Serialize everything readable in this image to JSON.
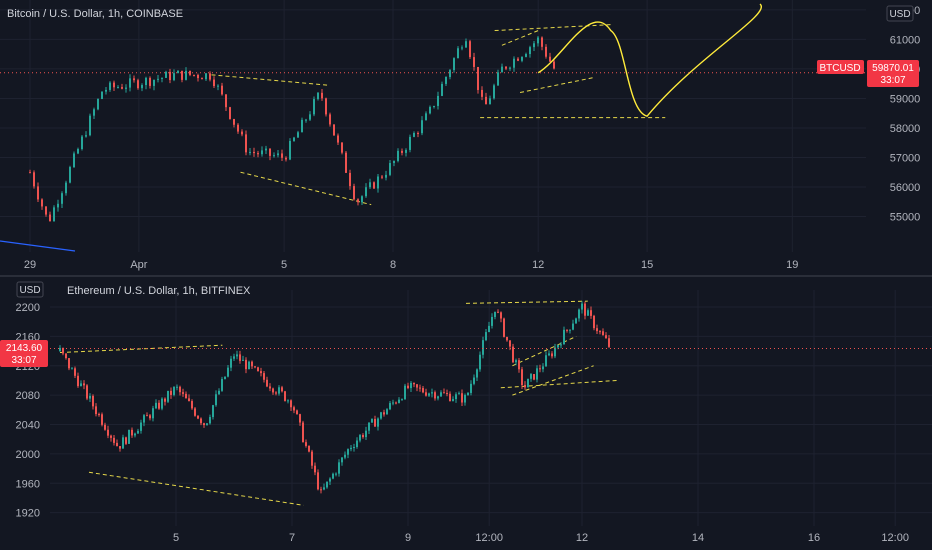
{
  "colors": {
    "background": "#131722",
    "grid": "#1e2230",
    "up": "#26a69a",
    "down": "#ef5350",
    "text": "#d1d4dc",
    "axis_text": "#b2b5be",
    "pattern_lines": "#e6d84a",
    "projection": "#ffeb3b",
    "price_label_bg": "#f23645"
  },
  "chart_data": [
    {
      "type": "candlestick",
      "title": "Bitcoin / U.S. Dollar, 1h, COINBASE",
      "currency_label": "USD",
      "symbol_tag": "BTCUSD",
      "last_price": "59870.01",
      "countdown": "33:07",
      "x_tick_labels": [
        "29",
        "Apr",
        "5",
        "8",
        "12",
        "15",
        "19"
      ],
      "y_ticks": [
        55000,
        56000,
        57000,
        58000,
        59000,
        60000,
        61000,
        62000
      ],
      "y_tick_labels": [
        "55000",
        "56000",
        "57000",
        "58000",
        "59000",
        "60000",
        "61000",
        "62000"
      ],
      "ylim": [
        54000,
        62200
      ],
      "grid": true,
      "key_points": [
        {
          "x": "Mar 29",
          "y": 56500
        },
        {
          "x": "Mar 29",
          "y": 54800
        },
        {
          "x": "Mar 31",
          "y": 59300
        },
        {
          "x": "Apr 2",
          "y": 59800
        },
        {
          "x": "Apr 3",
          "y": 59800
        },
        {
          "x": "Apr 4",
          "y": 57200
        },
        {
          "x": "Apr 5",
          "y": 57000
        },
        {
          "x": "Apr 6",
          "y": 59200
        },
        {
          "x": "Apr 7",
          "y": 55500
        },
        {
          "x": "Apr 8",
          "y": 56800
        },
        {
          "x": "Apr 9",
          "y": 58500
        },
        {
          "x": "Apr 10",
          "y": 61200
        },
        {
          "x": "Apr 10",
          "y": 58600
        },
        {
          "x": "Apr 11",
          "y": 60000
        },
        {
          "x": "Apr 12",
          "y": 61000
        },
        {
          "x": "Apr 12",
          "y": 59870
        }
      ],
      "projection_path": [
        {
          "x": "Apr 12",
          "y": 59870
        },
        {
          "x": "Apr 14",
          "y": 61300
        },
        {
          "x": "Apr 15",
          "y": 58400
        },
        {
          "x": "Apr 19",
          "y": 62200
        }
      ]
    },
    {
      "type": "candlestick",
      "title": "Ethereum / U.S. Dollar, 1h, BITFINEX",
      "currency_label": "USD",
      "last_price": "2143.60",
      "countdown": "33:07",
      "x_tick_labels": [
        "5",
        "7",
        "9",
        "12:00",
        "12",
        "14",
        "16",
        "12:00"
      ],
      "y_ticks": [
        1920,
        1960,
        2000,
        2040,
        2080,
        2120,
        2160,
        2200
      ],
      "y_tick_labels": [
        "1920",
        "1960",
        "2000",
        "2040",
        "2080",
        "2120",
        "2160",
        "2200"
      ],
      "ylim": [
        1910,
        2215
      ],
      "grid": true,
      "key_points": [
        {
          "x": "Apr 3",
          "y": 2140
        },
        {
          "x": "Apr 4",
          "y": 2010
        },
        {
          "x": "Apr 5",
          "y": 2090
        },
        {
          "x": "Apr 5",
          "y": 2040
        },
        {
          "x": "Apr 6",
          "y": 2135
        },
        {
          "x": "Apr 7",
          "y": 2070
        },
        {
          "x": "Apr 7",
          "y": 1945
        },
        {
          "x": "Apr 8",
          "y": 2010
        },
        {
          "x": "Apr 9",
          "y": 2090
        },
        {
          "x": "Apr 10",
          "y": 2075
        },
        {
          "x": "Apr 10",
          "y": 2200
        },
        {
          "x": "Apr 11",
          "y": 2090
        },
        {
          "x": "Apr 11",
          "y": 2140
        },
        {
          "x": "Apr 12",
          "y": 2200
        },
        {
          "x": "Apr 12",
          "y": 2143.6
        }
      ]
    }
  ]
}
